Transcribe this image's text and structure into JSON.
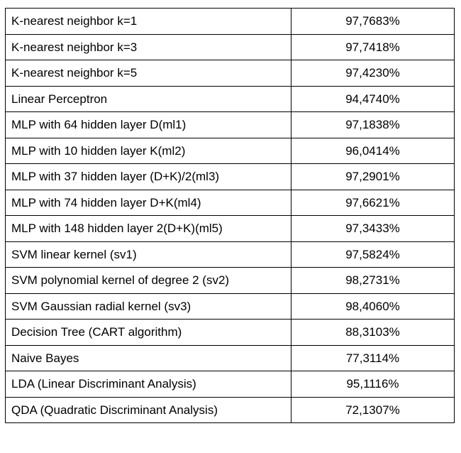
{
  "table": {
    "rows": [
      {
        "method": "K-nearest neighbor k=1",
        "accuracy": "97,7683%"
      },
      {
        "method": "K-nearest neighbor k=3",
        "accuracy": "97,7418%"
      },
      {
        "method": "K-nearest neighbor k=5",
        "accuracy": "97,4230%"
      },
      {
        "method": "Linear Perceptron",
        "accuracy": "94,4740%"
      },
      {
        "method": "MLP with 64 hidden layer D(ml1)",
        "accuracy": "97,1838%"
      },
      {
        "method": "MLP with 10 hidden layer K(ml2)",
        "accuracy": "96,0414%"
      },
      {
        "method": "MLP with 37 hidden layer (D+K)/2(ml3)",
        "accuracy": "97,2901%"
      },
      {
        "method": "MLP with 74 hidden layer D+K(ml4)",
        "accuracy": "97,6621%"
      },
      {
        "method": "MLP with 148 hidden layer 2(D+K)(ml5)",
        "accuracy": "97,3433%"
      },
      {
        "method": "SVM linear kernel (sv1)",
        "accuracy": "97,5824%"
      },
      {
        "method": "SVM polynomial kernel of degree 2 (sv2)",
        "accuracy": "98,2731%"
      },
      {
        "method": "SVM Gaussian radial kernel (sv3)",
        "accuracy": "98,4060%"
      },
      {
        "method": "Decision Tree (CART algorithm)",
        "accuracy": "88,3103%"
      },
      {
        "method": "Naive Bayes",
        "accuracy": "77,3114%"
      },
      {
        "method": "LDA (Linear Discriminant Analysis)",
        "accuracy": "95,1116%"
      },
      {
        "method": "QDA (Quadratic Discriminant Analysis)",
        "accuracy": "72,1307%"
      }
    ]
  }
}
